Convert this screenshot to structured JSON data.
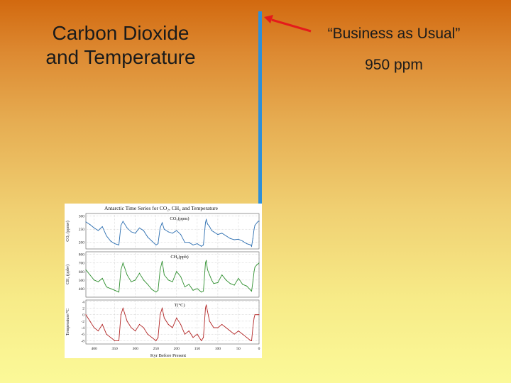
{
  "slide": {
    "title_line1": "Carbon Dioxide",
    "title_line2": "and Temperature",
    "annotation_label": "“Business as Usual”",
    "annotation_value": "950 ppm"
  },
  "colors": {
    "marker_bar": "#2f8fd8",
    "arrow": "#e41b1b",
    "co2_series": "#2a6db0",
    "ch4_series": "#2f8f2f",
    "temp_series": "#b22525"
  },
  "chart_data": {
    "type": "line",
    "title": "Antarctic Time Series for CO₂, CH₄ and Temperature",
    "xlabel": "Kyr Before Present",
    "xlim": [
      420,
      0
    ],
    "x_ticks": [
      "400",
      "350",
      "300",
      "250",
      "200",
      "150",
      "100",
      "50",
      "0"
    ],
    "panels": [
      {
        "name": "CO₂(ppm)",
        "ylabel": "CO₂ (ppmv)",
        "ylim": [
          175,
          310
        ],
        "y_ticks": [
          "300",
          "250",
          "200"
        ],
        "x": [
          420,
          410,
          400,
          390,
          380,
          370,
          360,
          350,
          340,
          335,
          330,
          320,
          310,
          300,
          290,
          280,
          270,
          260,
          250,
          245,
          240,
          235,
          230,
          220,
          210,
          200,
          190,
          180,
          170,
          160,
          150,
          140,
          135,
          130,
          128,
          125,
          120,
          115,
          110,
          100,
          90,
          80,
          70,
          60,
          50,
          40,
          30,
          20,
          18,
          15,
          12,
          10,
          5,
          2,
          0
        ],
        "values": [
          278,
          268,
          255,
          245,
          260,
          225,
          205,
          195,
          190,
          265,
          280,
          255,
          240,
          235,
          255,
          245,
          220,
          205,
          190,
          195,
          255,
          275,
          250,
          240,
          235,
          245,
          230,
          200,
          200,
          190,
          195,
          185,
          190,
          275,
          287,
          270,
          260,
          245,
          240,
          230,
          235,
          225,
          215,
          210,
          212,
          205,
          195,
          190,
          185,
          215,
          250,
          265,
          275,
          280,
          280
        ]
      },
      {
        "name": "CH₄(ppb)",
        "ylabel": "CH₄ (ppbv)",
        "ylim": [
          300,
          830
        ],
        "y_ticks": [
          "800",
          "700",
          "600",
          "500",
          "400"
        ],
        "x": [
          420,
          410,
          400,
          390,
          380,
          370,
          360,
          350,
          340,
          335,
          330,
          320,
          310,
          300,
          290,
          280,
          270,
          260,
          250,
          245,
          240,
          235,
          230,
          220,
          210,
          200,
          190,
          180,
          170,
          160,
          150,
          140,
          135,
          130,
          128,
          125,
          120,
          115,
          110,
          100,
          90,
          80,
          70,
          60,
          50,
          40,
          30,
          20,
          18,
          15,
          12,
          10,
          5,
          2,
          0
        ],
        "values": [
          620,
          560,
          500,
          480,
          520,
          420,
          400,
          380,
          360,
          620,
          700,
          560,
          480,
          500,
          580,
          500,
          450,
          390,
          360,
          380,
          620,
          720,
          560,
          500,
          480,
          600,
          540,
          420,
          450,
          380,
          400,
          360,
          370,
          700,
          730,
          620,
          560,
          500,
          460,
          470,
          560,
          500,
          460,
          440,
          520,
          450,
          430,
          380,
          370,
          480,
          600,
          650,
          680,
          690,
          700
        ]
      },
      {
        "name": "T(°C)",
        "ylabel": "Temperature/°C",
        "ylim": [
          -9,
          4.5
        ],
        "y_ticks": [
          "4",
          "2",
          "0",
          "-2",
          "-4",
          "-6",
          "-8"
        ],
        "x": [
          420,
          410,
          400,
          390,
          380,
          370,
          360,
          350,
          340,
          335,
          330,
          320,
          310,
          300,
          290,
          280,
          270,
          260,
          250,
          245,
          240,
          235,
          230,
          220,
          210,
          200,
          190,
          180,
          170,
          160,
          150,
          140,
          135,
          130,
          128,
          125,
          120,
          115,
          110,
          100,
          90,
          80,
          70,
          60,
          50,
          40,
          30,
          20,
          18,
          15,
          12,
          10,
          5,
          2,
          0
        ],
        "values": [
          0,
          -2,
          -4,
          -5,
          -3,
          -6,
          -7,
          -8,
          -8,
          0,
          2,
          -2,
          -4,
          -5,
          -3,
          -4,
          -6,
          -7,
          -8,
          -7,
          0,
          2,
          -1,
          -3,
          -4,
          -1,
          -3,
          -6,
          -5,
          -7,
          -6,
          -8,
          -7,
          2,
          3,
          1,
          -2,
          -3,
          -4,
          -4,
          -3,
          -4,
          -5,
          -6,
          -5,
          -6,
          -7,
          -8,
          -8,
          -4,
          -1,
          0,
          0,
          0,
          0
        ]
      }
    ]
  }
}
